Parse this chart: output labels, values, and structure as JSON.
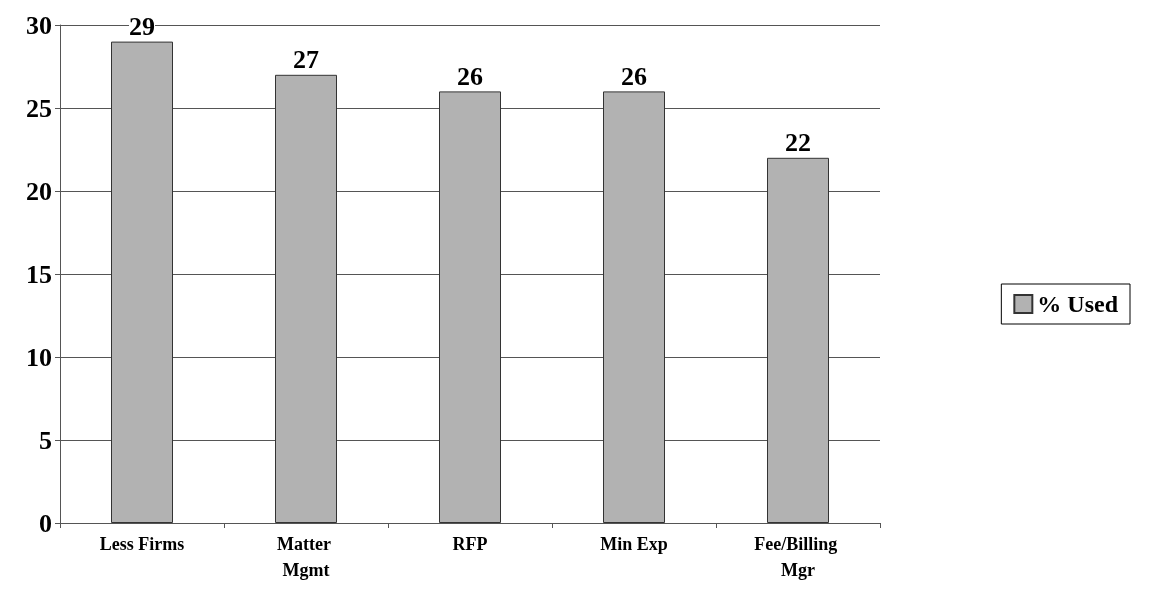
{
  "chart_data": {
    "type": "bar",
    "categories": [
      "Less Firms",
      "Matter Mgmt",
      "RFP",
      "Min Exp",
      "Fee/Billing Mgr"
    ],
    "series": [
      {
        "name": "% Used",
        "color": "#b2b2b2",
        "values": [
          29,
          27,
          26,
          26,
          22
        ]
      }
    ],
    "ylim": [
      0,
      30
    ],
    "yticks": [
      0,
      5,
      10,
      15,
      20,
      25,
      30
    ],
    "grid": "y",
    "legend": "right",
    "data_labels": true
  }
}
